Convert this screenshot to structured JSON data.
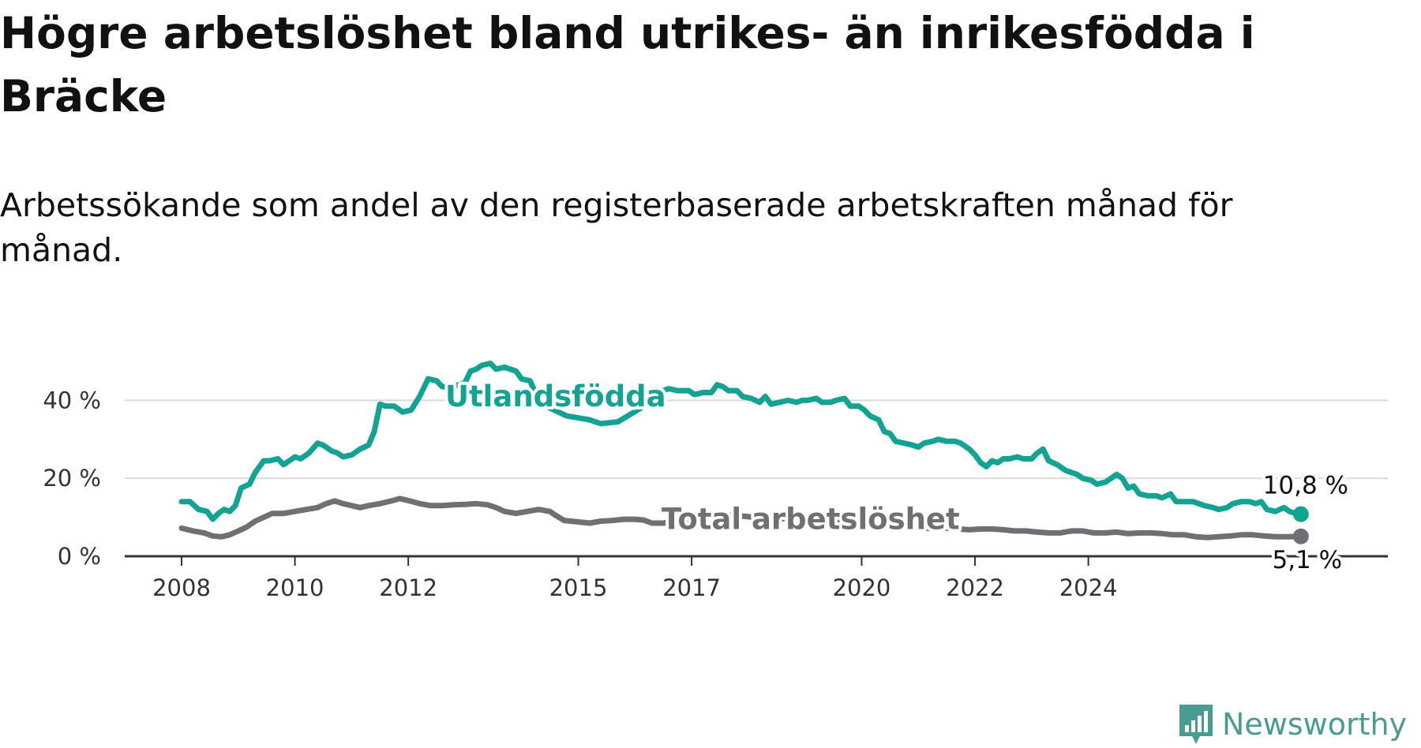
{
  "title": "Högre arbetslöshet bland utrikes- än inrikesfödda i Bräcke",
  "subtitle": "Arbetssökande som andel av den registerbaserade arbetskraften månad för månad.",
  "brand": {
    "name": "Newsworthy",
    "icon": "newsworthy-chart-icon"
  },
  "colors": {
    "utlandsfodda": "#12a392",
    "total": "#6f6f74",
    "grid": "#d9d9d9",
    "axis": "#333333"
  },
  "chart_data": {
    "type": "line",
    "x_unit": "year",
    "y_unit": "%",
    "ylim": [
      0,
      50
    ],
    "yticks": [
      0,
      20,
      40
    ],
    "ytick_labels": [
      "0 %",
      "20 %",
      "40 %"
    ],
    "xticks": [
      2008,
      2010,
      2012,
      2015,
      2017,
      2020,
      2022,
      2024
    ],
    "xtick_labels": [
      "2008",
      "2010",
      "2012",
      "2015",
      "2017",
      "2020",
      "2022",
      "2024"
    ],
    "grid": "horizontal",
    "series": [
      {
        "name": "Utlandsfödda",
        "color": "#12a392",
        "last_label": "10,8 %",
        "points": [
          [
            2008.0,
            14.0
          ],
          [
            2008.15,
            14.0
          ],
          [
            2008.3,
            12.0
          ],
          [
            2008.45,
            11.5
          ],
          [
            2008.55,
            9.5
          ],
          [
            2008.65,
            11.0
          ],
          [
            2008.75,
            12.0
          ],
          [
            2008.85,
            11.5
          ],
          [
            2008.95,
            13.0
          ],
          [
            2009.05,
            17.5
          ],
          [
            2009.2,
            18.5
          ],
          [
            2009.3,
            21.5
          ],
          [
            2009.45,
            24.5
          ],
          [
            2009.55,
            24.5
          ],
          [
            2009.7,
            25.0
          ],
          [
            2009.8,
            23.5
          ],
          [
            2009.9,
            24.5
          ],
          [
            2010.0,
            25.5
          ],
          [
            2010.1,
            25.0
          ],
          [
            2010.25,
            26.5
          ],
          [
            2010.4,
            29.0
          ],
          [
            2010.5,
            28.5
          ],
          [
            2010.65,
            27.0
          ],
          [
            2010.75,
            26.5
          ],
          [
            2010.85,
            25.5
          ],
          [
            2011.0,
            26.0
          ],
          [
            2011.15,
            27.5
          ],
          [
            2011.3,
            28.5
          ],
          [
            2011.4,
            32.0
          ],
          [
            2011.5,
            39.0
          ],
          [
            2011.6,
            38.5
          ],
          [
            2011.75,
            38.5
          ],
          [
            2011.9,
            37.0
          ],
          [
            2012.05,
            37.5
          ],
          [
            2012.2,
            41.0
          ],
          [
            2012.35,
            45.5
          ],
          [
            2012.5,
            45.0
          ],
          [
            2012.6,
            43.5
          ],
          [
            2012.75,
            43.5
          ],
          [
            2012.9,
            44.0
          ],
          [
            2013.0,
            44.5
          ],
          [
            2013.1,
            47.5
          ],
          [
            2013.2,
            48.0
          ],
          [
            2013.3,
            49.0
          ],
          [
            2013.45,
            49.5
          ],
          [
            2013.55,
            48.0
          ],
          [
            2013.7,
            48.5
          ],
          [
            2013.8,
            48.0
          ],
          [
            2013.9,
            47.5
          ],
          [
            2014.0,
            45.5
          ],
          [
            2014.15,
            45.0
          ],
          [
            2014.3,
            40.0
          ],
          [
            2014.5,
            38.0
          ],
          [
            2014.8,
            36.0
          ],
          [
            2015.2,
            35.0
          ],
          [
            2015.4,
            34.0
          ],
          [
            2015.7,
            34.5
          ],
          [
            2016.1,
            38.0
          ],
          [
            2016.3,
            40.5
          ],
          [
            2016.5,
            42.5
          ],
          [
            2016.6,
            43.0
          ],
          [
            2016.75,
            42.5
          ],
          [
            2016.95,
            42.5
          ],
          [
            2017.05,
            41.5
          ],
          [
            2017.2,
            42.0
          ],
          [
            2017.35,
            42.0
          ],
          [
            2017.45,
            44.0
          ],
          [
            2017.55,
            43.5
          ],
          [
            2017.65,
            42.5
          ],
          [
            2017.8,
            42.5
          ],
          [
            2017.9,
            41.0
          ],
          [
            2018.05,
            40.5
          ],
          [
            2018.2,
            39.5
          ],
          [
            2018.3,
            41.0
          ],
          [
            2018.4,
            39.0
          ],
          [
            2018.55,
            39.5
          ],
          [
            2018.7,
            40.0
          ],
          [
            2018.85,
            39.5
          ],
          [
            2018.95,
            40.0
          ],
          [
            2019.05,
            40.0
          ],
          [
            2019.2,
            40.5
          ],
          [
            2019.3,
            39.5
          ],
          [
            2019.45,
            39.5
          ],
          [
            2019.55,
            40.0
          ],
          [
            2019.7,
            40.5
          ],
          [
            2019.8,
            38.5
          ],
          [
            2019.95,
            38.5
          ],
          [
            2020.05,
            37.5
          ],
          [
            2020.15,
            36.0
          ],
          [
            2020.3,
            35.0
          ],
          [
            2020.4,
            32.0
          ],
          [
            2020.5,
            31.5
          ],
          [
            2020.6,
            29.5
          ],
          [
            2020.75,
            29.0
          ],
          [
            2020.9,
            28.5
          ],
          [
            2021.0,
            28.0
          ],
          [
            2021.1,
            29.0
          ],
          [
            2021.25,
            29.5
          ],
          [
            2021.35,
            30.0
          ],
          [
            2021.5,
            29.5
          ],
          [
            2021.65,
            29.5
          ],
          [
            2021.75,
            29.0
          ],
          [
            2021.9,
            27.5
          ],
          [
            2022.0,
            26.0
          ],
          [
            2022.1,
            24.0
          ],
          [
            2022.2,
            23.0
          ],
          [
            2022.3,
            24.5
          ],
          [
            2022.4,
            24.0
          ],
          [
            2022.5,
            25.0
          ],
          [
            2022.6,
            25.0
          ],
          [
            2022.75,
            25.5
          ],
          [
            2022.85,
            25.0
          ],
          [
            2023.0,
            25.0
          ],
          [
            2023.1,
            26.5
          ],
          [
            2023.2,
            27.5
          ],
          [
            2023.3,
            24.5
          ],
          [
            2023.45,
            23.5
          ],
          [
            2023.6,
            22.0
          ],
          [
            2023.8,
            21.0
          ],
          [
            2023.9,
            20.0
          ],
          [
            2024.05,
            19.5
          ],
          [
            2024.15,
            18.5
          ],
          [
            2024.3,
            19.0
          ],
          [
            2024.4,
            20.0
          ],
          [
            2024.5,
            21.0
          ],
          [
            2024.6,
            20.0
          ],
          [
            2024.7,
            17.5
          ],
          [
            2024.8,
            18.0
          ],
          [
            2024.9,
            16.0
          ],
          [
            2025.05,
            15.5
          ],
          [
            2025.2,
            15.5
          ],
          [
            2025.3,
            15.0
          ],
          [
            2025.45,
            16.0
          ],
          [
            2025.55,
            14.0
          ],
          [
            2025.7,
            14.0
          ],
          [
            2025.85,
            14.0
          ],
          [
            2025.95,
            13.5
          ],
          [
            2026.05,
            13.0
          ],
          [
            2026.2,
            12.5
          ],
          [
            2026.3,
            12.0
          ],
          [
            2026.45,
            12.5
          ],
          [
            2026.55,
            13.5
          ],
          [
            2026.7,
            14.0
          ],
          [
            2026.85,
            14.0
          ],
          [
            2026.95,
            13.5
          ],
          [
            2027.05,
            14.0
          ],
          [
            2027.15,
            12.0
          ],
          [
            2027.3,
            11.5
          ],
          [
            2027.45,
            12.5
          ],
          [
            2027.55,
            11.5
          ],
          [
            2027.65,
            11.0
          ],
          [
            2027.75,
            10.8
          ]
        ]
      },
      {
        "name": "Total arbetslöshet",
        "color": "#6f6f74",
        "last_label": "5,1 %",
        "points": [
          [
            2008.0,
            7.2
          ],
          [
            2008.2,
            6.5
          ],
          [
            2008.4,
            6.0
          ],
          [
            2008.55,
            5.2
          ],
          [
            2008.7,
            5.0
          ],
          [
            2008.85,
            5.5
          ],
          [
            2009.0,
            6.5
          ],
          [
            2009.15,
            7.5
          ],
          [
            2009.3,
            9.0
          ],
          [
            2009.45,
            10.0
          ],
          [
            2009.6,
            11.0
          ],
          [
            2009.8,
            11.0
          ],
          [
            2010.0,
            11.5
          ],
          [
            2010.2,
            12.0
          ],
          [
            2010.4,
            12.5
          ],
          [
            2010.55,
            13.5
          ],
          [
            2010.7,
            14.2
          ],
          [
            2010.85,
            13.5
          ],
          [
            2011.0,
            13.0
          ],
          [
            2011.15,
            12.5
          ],
          [
            2011.3,
            13.0
          ],
          [
            2011.5,
            13.5
          ],
          [
            2011.7,
            14.2
          ],
          [
            2011.85,
            14.8
          ],
          [
            2012.0,
            14.3
          ],
          [
            2012.2,
            13.5
          ],
          [
            2012.4,
            13.0
          ],
          [
            2012.6,
            13.0
          ],
          [
            2012.8,
            13.2
          ],
          [
            2013.0,
            13.3
          ],
          [
            2013.2,
            13.5
          ],
          [
            2013.4,
            13.2
          ],
          [
            2013.55,
            12.5
          ],
          [
            2013.7,
            11.5
          ],
          [
            2013.9,
            11.0
          ],
          [
            2014.1,
            11.5
          ],
          [
            2014.3,
            12.0
          ],
          [
            2014.5,
            11.5
          ],
          [
            2014.6,
            10.5
          ],
          [
            2014.75,
            9.2
          ],
          [
            2015.0,
            8.8
          ],
          [
            2015.2,
            8.5
          ],
          [
            2015.4,
            9.0
          ],
          [
            2015.6,
            9.2
          ],
          [
            2015.8,
            9.5
          ],
          [
            2016.0,
            9.5
          ],
          [
            2016.15,
            9.3
          ],
          [
            2016.3,
            8.5
          ],
          [
            2016.5,
            8.5
          ],
          [
            2016.7,
            9.0
          ],
          [
            2016.9,
            9.3
          ],
          [
            2017.1,
            10.0
          ],
          [
            2017.3,
            10.5
          ],
          [
            2017.5,
            11.0
          ],
          [
            2017.7,
            10.5
          ],
          [
            2017.9,
            10.3
          ],
          [
            2018.1,
            10.0
          ],
          [
            2018.3,
            9.5
          ],
          [
            2018.5,
            9.5
          ],
          [
            2018.7,
            9.8
          ],
          [
            2018.9,
            10.0
          ],
          [
            2019.1,
            10.2
          ],
          [
            2019.3,
            10.0
          ],
          [
            2019.5,
            9.5
          ],
          [
            2019.7,
            9.0
          ],
          [
            2019.9,
            8.8
          ],
          [
            2020.1,
            8.5
          ],
          [
            2020.3,
            8.0
          ],
          [
            2020.5,
            7.5
          ],
          [
            2020.7,
            7.5
          ],
          [
            2020.9,
            7.3
          ],
          [
            2021.1,
            7.2
          ],
          [
            2021.3,
            7.0
          ],
          [
            2021.5,
            7.2
          ],
          [
            2021.7,
            7.0
          ],
          [
            2021.9,
            6.8
          ],
          [
            2022.1,
            7.0
          ],
          [
            2022.3,
            7.0
          ],
          [
            2022.5,
            6.8
          ],
          [
            2022.7,
            6.5
          ],
          [
            2022.9,
            6.5
          ],
          [
            2023.1,
            6.2
          ],
          [
            2023.3,
            6.0
          ],
          [
            2023.5,
            6.0
          ],
          [
            2023.7,
            6.5
          ],
          [
            2023.9,
            6.5
          ],
          [
            2024.1,
            6.0
          ],
          [
            2024.3,
            6.0
          ],
          [
            2024.5,
            6.2
          ],
          [
            2024.7,
            5.8
          ],
          [
            2024.9,
            6.0
          ],
          [
            2025.1,
            6.0
          ],
          [
            2025.3,
            5.8
          ],
          [
            2025.5,
            5.5
          ],
          [
            2025.7,
            5.5
          ],
          [
            2025.9,
            5.0
          ],
          [
            2026.1,
            4.8
          ],
          [
            2026.3,
            5.0
          ],
          [
            2026.5,
            5.2
          ],
          [
            2026.7,
            5.5
          ],
          [
            2026.9,
            5.5
          ],
          [
            2027.1,
            5.2
          ],
          [
            2027.3,
            5.0
          ],
          [
            2027.5,
            5.0
          ],
          [
            2027.75,
            5.1
          ]
        ]
      }
    ],
    "annotations": [
      {
        "text": "Utlandsfödda",
        "series": "Utlandsfödda"
      },
      {
        "text": "Total arbetslöshet",
        "series": "Total arbetslöshet"
      }
    ]
  }
}
